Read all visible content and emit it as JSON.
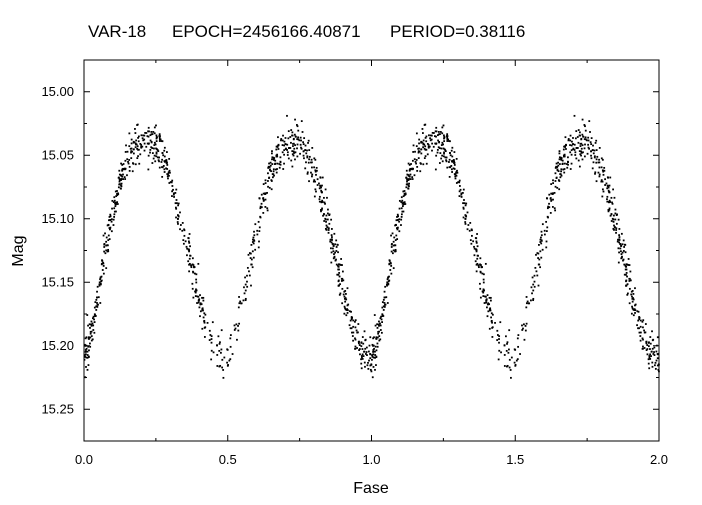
{
  "chart_data": {
    "type": "scatter",
    "title_parts": {
      "star": "VAR-18",
      "epoch": "EPOCH=2456166.40871",
      "period": "PERIOD=0.38116"
    },
    "xlabel": "Fase",
    "ylabel": "Mag",
    "xlim": [
      0.0,
      2.0
    ],
    "ylim": [
      15.275,
      14.975
    ],
    "y_inverted": true,
    "x_ticks": [
      "0.0",
      "0.5",
      "1.0",
      "1.5",
      "2.0"
    ],
    "y_ticks": [
      "15.00",
      "15.05",
      "15.10",
      "15.15",
      "15.20",
      "15.25"
    ],
    "grid": false,
    "legend": "none",
    "marker_color": "#000000",
    "series": [
      {
        "light_curve_model": {
          "mean_mag": 15.13,
          "amplitude_mag": 0.085,
          "max_light_phase": 0.25,
          "min_light_phase": 0.5,
          "scatter_mag": 0.008
        },
        "x": [
          0.0,
          0.01,
          0.02,
          0.03,
          0.04,
          0.05,
          0.06,
          0.07,
          0.08,
          0.09,
          0.1,
          0.11,
          0.12,
          0.13,
          0.14,
          0.15,
          0.16,
          0.17,
          0.18,
          0.19,
          0.2,
          0.21,
          0.22,
          0.23,
          0.24,
          0.25,
          0.26,
          0.27,
          0.28,
          0.29,
          0.3,
          0.31,
          0.32,
          0.33,
          0.34,
          0.35,
          0.36,
          0.37,
          0.38,
          0.39,
          0.4,
          0.41,
          0.42,
          0.43,
          0.44,
          0.45,
          0.46,
          0.47,
          0.48,
          0.49,
          0.5,
          0.51,
          0.52,
          0.53,
          0.54,
          0.55,
          0.56,
          0.57,
          0.58,
          0.59,
          0.6,
          0.61,
          0.62,
          0.63,
          0.64,
          0.65,
          0.66,
          0.67,
          0.68,
          0.69,
          0.7,
          0.71,
          0.72,
          0.73,
          0.74,
          0.75,
          0.76,
          0.77,
          0.78,
          0.79,
          0.8,
          0.81,
          0.82,
          0.83,
          0.84,
          0.85,
          0.86,
          0.87,
          0.88,
          0.89,
          0.9,
          0.91,
          0.92,
          0.93,
          0.94,
          0.95,
          0.96,
          0.97,
          0.98,
          0.99,
          1.0
        ],
        "y": [
          15.21,
          15.205,
          15.195,
          15.185,
          15.17,
          15.16,
          15.145,
          15.13,
          15.12,
          15.105,
          15.095,
          15.085,
          15.075,
          15.067,
          15.06,
          15.055,
          15.05,
          15.047,
          15.045,
          15.043,
          15.041,
          15.04,
          15.04,
          15.04,
          15.041,
          15.042,
          15.044,
          15.048,
          15.053,
          15.06,
          15.068,
          15.077,
          15.085,
          15.095,
          15.105,
          15.115,
          15.125,
          15.135,
          15.145,
          15.155,
          15.165,
          15.17,
          15.178,
          15.185,
          15.192,
          15.198,
          15.203,
          15.206,
          15.209,
          15.211,
          15.212,
          15.205,
          15.195,
          15.185,
          15.175,
          15.165,
          15.155,
          15.145,
          15.135,
          15.12,
          15.11,
          15.1,
          15.09,
          15.08,
          15.07,
          15.063,
          15.057,
          15.052,
          15.048,
          15.045,
          15.043,
          15.041,
          15.04,
          15.04,
          15.04,
          15.041,
          15.043,
          15.046,
          15.05,
          15.055,
          15.06,
          15.067,
          15.075,
          15.085,
          15.095,
          15.105,
          15.115,
          15.125,
          15.135,
          15.145,
          15.155,
          15.165,
          15.175,
          15.185,
          15.19,
          15.195,
          15.2,
          15.205,
          15.208,
          15.21,
          15.21
        ]
      }
    ]
  }
}
